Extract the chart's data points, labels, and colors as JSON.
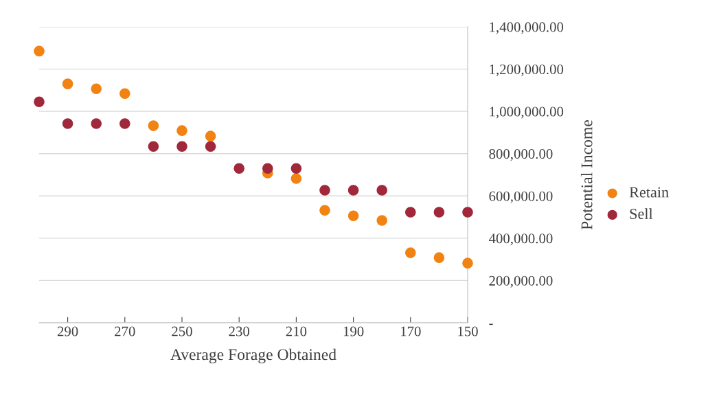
{
  "chart_data": {
    "type": "scatter",
    "xlabel": "Average Forage Obtained",
    "ylabel": "Potential Income",
    "x": [
      300,
      290,
      280,
      270,
      260,
      250,
      240,
      230,
      220,
      210,
      200,
      190,
      180,
      170,
      160,
      150
    ],
    "series": [
      {
        "name": "Retain",
        "color": "#f28312",
        "values": [
          1285000,
          1130000,
          1107000,
          1084000,
          932000,
          909000,
          883000,
          null,
          708000,
          682000,
          532000,
          506000,
          484000,
          331000,
          308000,
          282000
        ]
      },
      {
        "name": "Sell",
        "color": "#a0283a",
        "values": [
          1045000,
          942000,
          942000,
          942000,
          834000,
          834000,
          834000,
          730000,
          730000,
          730000,
          627000,
          627000,
          627000,
          523000,
          523000,
          523000
        ]
      }
    ],
    "xlim": [
      300,
      150
    ],
    "xticks": [
      290,
      270,
      250,
      230,
      210,
      190,
      170,
      150
    ],
    "ylim": [
      0,
      1400000
    ],
    "yticks": [
      {
        "value": 0,
        "label": "-"
      },
      {
        "value": 200000,
        "label": "200,000.00"
      },
      {
        "value": 400000,
        "label": "400,000.00"
      },
      {
        "value": 600000,
        "label": "600,000.00"
      },
      {
        "value": 800000,
        "label": "800,000.00"
      },
      {
        "value": 1000000,
        "label": "1,000,000.00"
      },
      {
        "value": 1200000,
        "label": "1,200,000.00"
      },
      {
        "value": 1400000,
        "label": "1,400,000.00"
      }
    ],
    "grid": "y",
    "legend": "right",
    "marker": "circle"
  }
}
